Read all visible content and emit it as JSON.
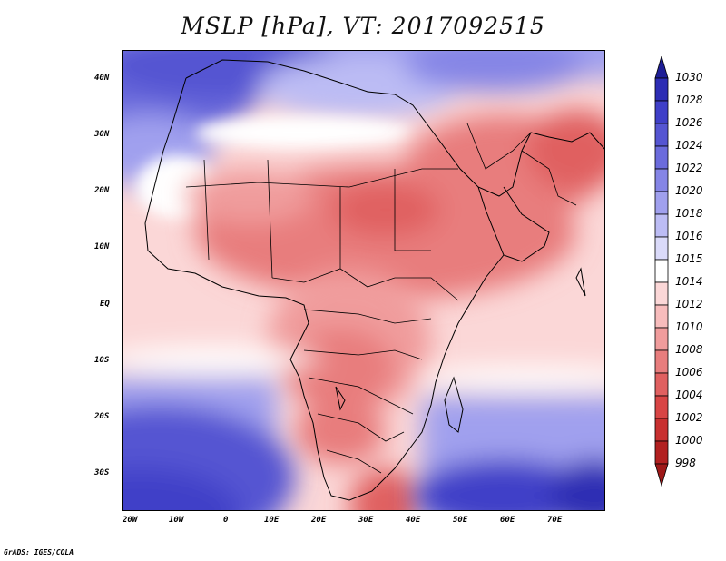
{
  "title": "MSLP [hPa], VT: 2017092515",
  "credit": "GrADS: IGES/COLA",
  "map": {
    "region": "Africa and Middle East",
    "projection": "latlon",
    "lon_range": [
      -25,
      80
    ],
    "lat_range": [
      -37,
      45
    ],
    "lat_labels": [
      "40N",
      "30N",
      "20N",
      "10N",
      "EQ",
      "10S",
      "20S",
      "30S"
    ],
    "lon_labels": [
      "20W",
      "10W",
      "0",
      "10E",
      "20E",
      "30E",
      "40E",
      "50E",
      "60E",
      "70E"
    ]
  },
  "colorbar": {
    "levels": [
      "1030",
      "1028",
      "1026",
      "1024",
      "1022",
      "1020",
      "1018",
      "1016",
      "1015",
      "1014",
      "1012",
      "1010",
      "1008",
      "1006",
      "1004",
      "1002",
      "1000",
      "998"
    ],
    "colors": [
      "#1e1e96",
      "#2d2db4",
      "#3f3fc8",
      "#5555d2",
      "#6b6bdc",
      "#8585e6",
      "#a0a0ee",
      "#bcbcf4",
      "#dadaf9",
      "#ffffff",
      "#fbd7d7",
      "#f7bcbc",
      "#f09c9c",
      "#e87d7d",
      "#e06060",
      "#d84545",
      "#c83030",
      "#b22020",
      "#9e1818"
    ]
  }
}
